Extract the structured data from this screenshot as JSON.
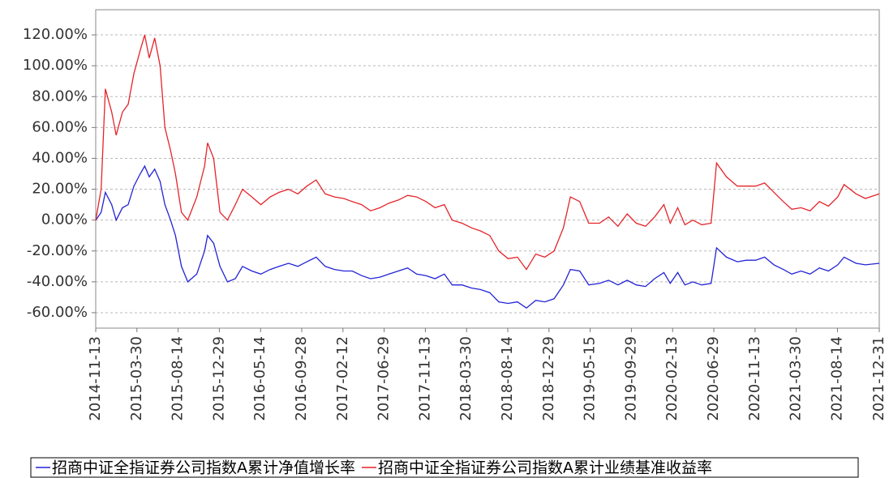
{
  "chart_data": {
    "type": "line",
    "x": [
      "2014-11-13",
      "2014-12-01",
      "2014-12-15",
      "2015-01-05",
      "2015-01-20",
      "2015-02-10",
      "2015-03-01",
      "2015-03-20",
      "2015-04-10",
      "2015-04-25",
      "2015-05-10",
      "2015-05-28",
      "2015-06-15",
      "2015-07-01",
      "2015-07-20",
      "2015-08-05",
      "2015-08-25",
      "2015-09-15",
      "2015-10-15",
      "2015-11-10",
      "2015-11-20",
      "2015-12-10",
      "2015-12-31",
      "2016-01-25",
      "2016-02-20",
      "2016-03-15",
      "2016-04-15",
      "2016-05-15",
      "2016-06-15",
      "2016-07-15",
      "2016-08-15",
      "2016-09-15",
      "2016-10-15",
      "2016-11-15",
      "2016-12-15",
      "2017-01-15",
      "2017-02-15",
      "2017-03-15",
      "2017-04-15",
      "2017-05-15",
      "2017-06-15",
      "2017-07-15",
      "2017-08-15",
      "2017-09-15",
      "2017-10-15",
      "2017-11-15",
      "2017-12-15",
      "2018-01-15",
      "2018-02-10",
      "2018-03-15",
      "2018-04-15",
      "2018-05-15",
      "2018-06-15",
      "2018-07-15",
      "2018-08-15",
      "2018-09-15",
      "2018-10-15",
      "2018-11-15",
      "2018-12-15",
      "2019-01-15",
      "2019-02-15",
      "2019-03-10",
      "2019-04-10",
      "2019-05-10",
      "2019-06-15",
      "2019-07-15",
      "2019-08-15",
      "2019-09-15",
      "2019-10-15",
      "2019-11-15",
      "2019-12-15",
      "2020-01-15",
      "2020-02-05",
      "2020-03-01",
      "2020-03-25",
      "2020-04-20",
      "2020-05-20",
      "2020-06-20",
      "2020-07-08",
      "2020-08-10",
      "2020-09-15",
      "2020-10-15",
      "2020-11-15",
      "2020-12-15",
      "2021-01-15",
      "2021-02-15",
      "2021-03-15",
      "2021-04-15",
      "2021-05-15",
      "2021-06-15",
      "2021-07-15",
      "2021-08-15",
      "2021-09-05",
      "2021-10-15",
      "2021-11-15",
      "2021-12-31"
    ],
    "series": [
      {
        "name": "招商中证全指证券公司指数A累计净值增长率",
        "color": "#2323d6",
        "values": [
          0,
          5,
          18,
          10,
          0,
          8,
          10,
          22,
          30,
          35,
          28,
          33,
          25,
          10,
          0,
          -10,
          -30,
          -40,
          -35,
          -20,
          -10,
          -15,
          -30,
          -40,
          -38,
          -30,
          -33,
          -35,
          -32,
          -30,
          -28,
          -30,
          -27,
          -24,
          -30,
          -32,
          -33,
          -33,
          -36,
          -38,
          -37,
          -35,
          -33,
          -31,
          -35,
          -36,
          -38,
          -35,
          -42,
          -42,
          -44,
          -45,
          -47,
          -53,
          -54,
          -53,
          -57,
          -52,
          -53,
          -51,
          -42,
          -32,
          -33,
          -42,
          -41,
          -39,
          -42,
          -39,
          -42,
          -43,
          -38,
          -34,
          -41,
          -34,
          -42,
          -40,
          -42,
          -41,
          -18,
          -24,
          -27,
          -26,
          -26,
          -24,
          -29,
          -32,
          -35,
          -33,
          -35,
          -31,
          -33,
          -29,
          -24,
          -28,
          -29,
          -28
        ]
      },
      {
        "name": "招商中证全指证券公司指数A累计业绩基准收益率",
        "color": "#e4242a",
        "values": [
          0,
          20,
          85,
          70,
          55,
          70,
          75,
          95,
          110,
          120,
          105,
          118,
          100,
          60,
          45,
          30,
          5,
          0,
          15,
          35,
          50,
          40,
          5,
          0,
          10,
          20,
          15,
          10,
          15,
          18,
          20,
          17,
          22,
          26,
          17,
          15,
          14,
          12,
          10,
          6,
          8,
          11,
          13,
          16,
          15,
          12,
          8,
          10,
          0,
          -2,
          -5,
          -7,
          -10,
          -20,
          -25,
          -24,
          -32,
          -22,
          -24,
          -20,
          -5,
          15,
          12,
          -2,
          -2,
          2,
          -4,
          4,
          -2,
          -4,
          2,
          10,
          -2,
          8,
          -3,
          0,
          -3,
          -2,
          37,
          28,
          22,
          22,
          22,
          24,
          18,
          12,
          7,
          8,
          6,
          12,
          9,
          15,
          23,
          17,
          14,
          17
        ]
      }
    ],
    "xlim": [
      "2014-11-13",
      "2021-12-31"
    ],
    "xticks": [
      "2014-11-13",
      "2015-03-30",
      "2015-08-14",
      "2015-12-29",
      "2016-05-14",
      "2016-09-28",
      "2017-02-12",
      "2017-06-29",
      "2017-11-13",
      "2018-03-30",
      "2018-08-14",
      "2018-12-29",
      "2019-05-15",
      "2019-09-29",
      "2020-02-13",
      "2020-06-29",
      "2020-11-13",
      "2021-03-30",
      "2021-08-14",
      "2021-12-31"
    ],
    "ylim": [
      -70,
      136.3
    ],
    "yticks": [
      {
        "value": -60,
        "label": "-60.00%"
      },
      {
        "value": -40,
        "label": "-40.00%"
      },
      {
        "value": -20,
        "label": "-20.00%"
      },
      {
        "value": 0,
        "label": "0.00%"
      },
      {
        "value": 20,
        "label": "20.00%"
      },
      {
        "value": 40,
        "label": "40.00%"
      },
      {
        "value": 60,
        "label": "60.00%"
      },
      {
        "value": 80,
        "label": "80.00%"
      },
      {
        "value": 100,
        "label": "100.00%"
      },
      {
        "value": 120,
        "label": "120.00%"
      }
    ],
    "grid": true
  }
}
